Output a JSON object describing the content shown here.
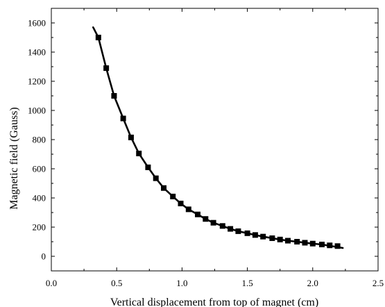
{
  "chart_data": {
    "type": "scatter",
    "title": "",
    "xlabel": "Vertical displacement from top of magnet (cm)",
    "ylabel": "Magnetic field (Gauss)",
    "xlim": [
      0.0,
      2.5
    ],
    "ylim": [
      -100,
      1700
    ],
    "x_ticks": [
      0.0,
      0.5,
      1.0,
      1.5,
      2.0,
      2.5
    ],
    "x_tick_labels": [
      "0.0",
      "0.5",
      "1.0",
      "1.5",
      "2.0",
      "2.5"
    ],
    "y_ticks": [
      0,
      200,
      400,
      600,
      800,
      1000,
      1200,
      1400,
      1600
    ],
    "y_tick_labels": [
      "0",
      "200",
      "400",
      "600",
      "800",
      "1000",
      "1200",
      "1400",
      "1600"
    ],
    "grid": false,
    "legend": "none",
    "colors": {
      "markers": "#000000",
      "fit_line": "#1a1a1a",
      "axes": "#000000"
    },
    "series": [
      {
        "kind": "scatter",
        "marker": "square",
        "x": [
          0.36,
          0.42,
          0.48,
          0.55,
          0.61,
          0.67,
          0.74,
          0.8,
          0.86,
          0.93,
          0.99,
          1.05,
          1.12,
          1.18,
          1.24,
          1.31,
          1.37,
          1.43,
          1.5,
          1.56,
          1.62,
          1.69,
          1.75,
          1.81,
          1.88,
          1.94,
          2.0,
          2.07,
          2.13,
          2.19
        ],
        "y": [
          1500,
          1290,
          1100,
          945,
          815,
          705,
          610,
          535,
          468,
          410,
          362,
          322,
          287,
          256,
          230,
          208,
          188,
          172,
          158,
          146,
          135,
          124,
          115,
          107,
          100,
          93,
          87,
          81,
          75,
          70
        ]
      },
      {
        "kind": "line",
        "x": [
          0.32,
          0.36,
          0.42,
          0.48,
          0.55,
          0.61,
          0.67,
          0.74,
          0.8,
          0.86,
          0.93,
          0.99,
          1.05,
          1.12,
          1.18,
          1.24,
          1.31,
          1.37,
          1.43,
          1.5,
          1.56,
          1.62,
          1.69,
          1.75,
          1.81,
          1.88,
          1.94,
          2.0,
          2.07,
          2.13,
          2.19,
          2.23
        ],
        "y": [
          1570,
          1500,
          1290,
          1100,
          945,
          815,
          705,
          610,
          535,
          468,
          410,
          362,
          322,
          287,
          256,
          230,
          208,
          188,
          172,
          158,
          146,
          135,
          124,
          115,
          107,
          100,
          93,
          87,
          81,
          72,
          63,
          57
        ]
      }
    ]
  }
}
